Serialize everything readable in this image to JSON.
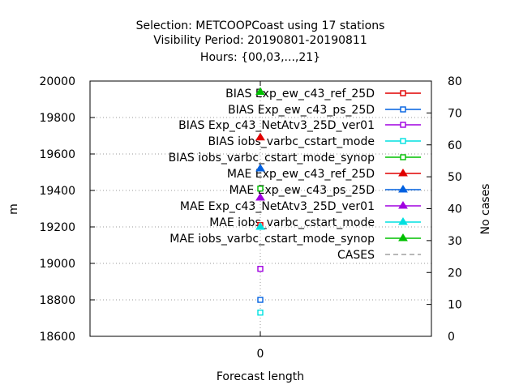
{
  "chart_data": {
    "type": "scatter",
    "title": [
      "Selection: METCOOPCoast using    17 stations",
      "Visibility   Period: 20190801-20190811",
      "Hours: {00,03,...,21}"
    ],
    "xlabel": "Forecast length",
    "ylabel": "m",
    "y2label": "No cases",
    "categories": [
      "0"
    ],
    "ylim": [
      18600,
      20000
    ],
    "y2lim": [
      0,
      80
    ],
    "yticks": [
      "18600",
      "18800",
      "19000",
      "19200",
      "19400",
      "19600",
      "19800",
      "20000"
    ],
    "y2ticks": [
      "0",
      "10",
      "20",
      "30",
      "40",
      "50",
      "60",
      "70",
      "80"
    ],
    "grid": true,
    "legend_position": "top-right",
    "series": [
      {
        "name": "BIAS Exp_ew_c43_ref_25D",
        "color": "#e00000",
        "marker": "square",
        "axis": "y",
        "values": [
          19210
        ]
      },
      {
        "name": "BIAS Exp_ew_c43_ps_25D",
        "color": "#0060e0",
        "marker": "square",
        "axis": "y",
        "values": [
          18800
        ]
      },
      {
        "name": "BIAS Exp_c43_NetAtv3_25D_ver01",
        "color": "#a000e0",
        "marker": "square",
        "axis": "y",
        "values": [
          18970
        ]
      },
      {
        "name": "BIAS iobs_varbc_cstart_mode",
        "color": "#00e0e0",
        "marker": "square",
        "axis": "y",
        "values": [
          18730
        ]
      },
      {
        "name": "BIAS iobs_varbc_cstart_mode_synop",
        "color": "#00c000",
        "marker": "square",
        "axis": "y",
        "values": [
          19410
        ]
      },
      {
        "name": "MAE Exp_ew_c43_ref_25D",
        "color": "#e00000",
        "marker": "triangle",
        "axis": "y",
        "values": [
          19690
        ]
      },
      {
        "name": "MAE Exp_ew_c43_ps_25D",
        "color": "#0060e0",
        "marker": "triangle",
        "axis": "y",
        "values": [
          19520
        ]
      },
      {
        "name": "MAE Exp_c43_NetAtv3_25D_ver01",
        "color": "#a000e0",
        "marker": "triangle",
        "axis": "y",
        "values": [
          19360
        ]
      },
      {
        "name": "MAE iobs_varbc_cstart_mode",
        "color": "#00e0e0",
        "marker": "triangle",
        "axis": "y",
        "values": [
          19200
        ]
      },
      {
        "name": "MAE iobs_varbc_cstart_mode_synop",
        "color": "#00c000",
        "marker": "triangle",
        "axis": "y",
        "values": [
          19940
        ]
      },
      {
        "name": "CASES",
        "color": "#a0a0a0",
        "marker": "none",
        "axis": "y2",
        "dashed": true,
        "values": []
      }
    ]
  }
}
